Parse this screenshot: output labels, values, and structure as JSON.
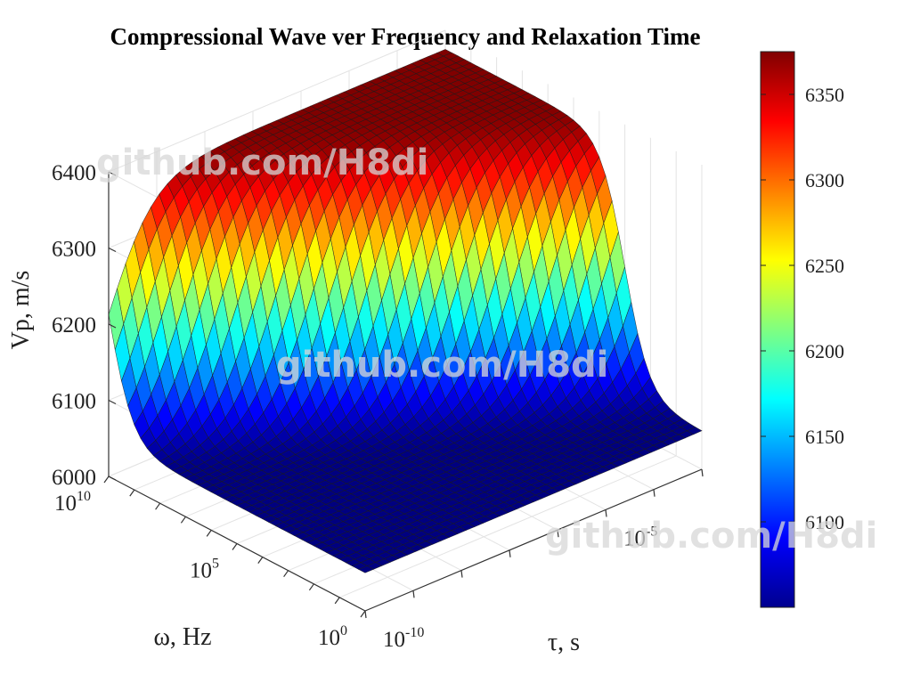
{
  "chart_data": {
    "type": "surface",
    "title": "Compressional Wave ver Frequency and Relaxation Time",
    "x": {
      "label": "ω, Hz",
      "scale": "log",
      "range": [
        1,
        10000000000.0
      ],
      "ticks": [
        {
          "base": "10",
          "exp": "0",
          "value": 1
        },
        {
          "base": "10",
          "exp": "5",
          "value": 100000
        },
        {
          "base": "10",
          "exp": "10",
          "value": 10000000000
        }
      ]
    },
    "y": {
      "label": "τ, s",
      "scale": "log",
      "range": [
        1e-10,
        0.001
      ],
      "ticks": [
        {
          "base": "10",
          "exp": "-10",
          "value": 1e-10
        },
        {
          "base": "10",
          "exp": "-5",
          "value": 1e-05
        }
      ]
    },
    "z": {
      "label": "Vp, m/s",
      "range": [
        6000,
        6400
      ],
      "ticks": [
        "6000",
        "6100",
        "6200",
        "6300",
        "6400"
      ]
    },
    "surface": {
      "low_value": 6050,
      "high_value": 6375,
      "note_values": "Vp rises from about 6050 to about 6375 m/s where omega*tau crosses 1"
    },
    "colorbar": {
      "colormap": "jet",
      "range": [
        6050,
        6375
      ],
      "ticks": [
        "6100",
        "6150",
        "6200",
        "6250",
        "6300",
        "6350"
      ]
    },
    "grid": true
  },
  "watermarks": [
    "github.com/H8di",
    "github.com/H8di",
    "github.com/H8di"
  ]
}
